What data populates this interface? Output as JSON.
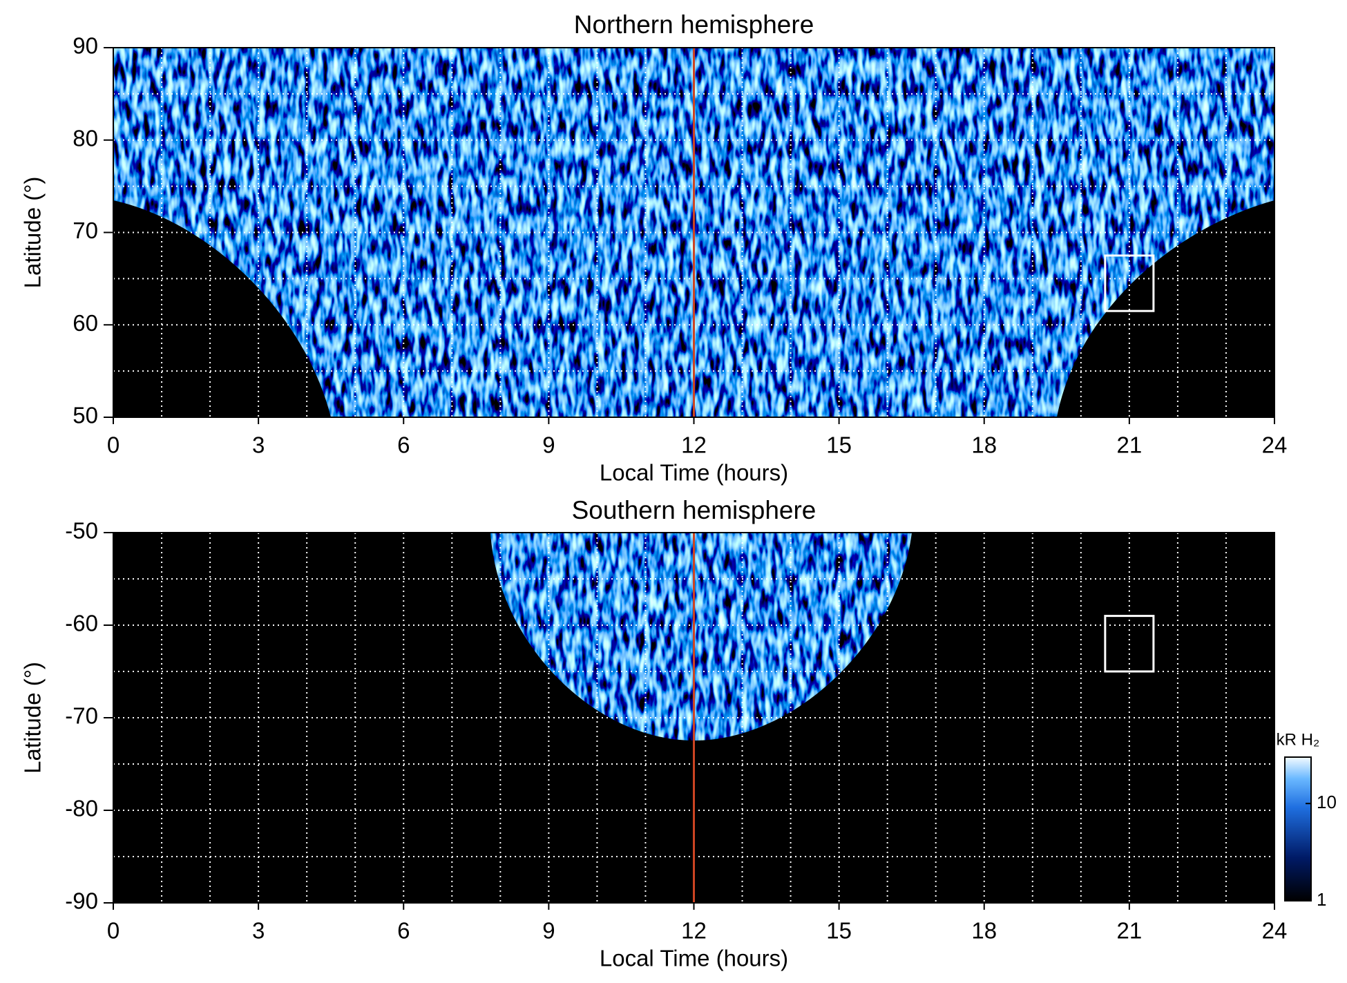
{
  "chart_data": [
    {
      "type": "heatmap",
      "title": "Northern hemisphere",
      "xlabel": "Local Time (hours)",
      "ylabel": "Latitude (°)",
      "xlim": [
        0,
        24
      ],
      "xticks": [
        0,
        3,
        6,
        9,
        12,
        15,
        18,
        21,
        24
      ],
      "ylim": [
        50,
        90
      ],
      "yticks": [
        50,
        60,
        70,
        80,
        90
      ],
      "xgrid_step": 1,
      "ygrid_step": 5,
      "vline": {
        "x": 12,
        "color": "#cc4422"
      },
      "boxes": [
        {
          "x": [
            20.5,
            21.5
          ],
          "y": [
            61.5,
            67.5
          ]
        }
      ]
    },
    {
      "type": "heatmap",
      "title": "Southern hemisphere",
      "xlabel": "Local Time (hours)",
      "ylabel": "Latitude (°)",
      "xlim": [
        0,
        24
      ],
      "xticks": [
        0,
        3,
        6,
        9,
        12,
        15,
        18,
        21,
        24
      ],
      "ylim": [
        -90,
        -50
      ],
      "yticks": [
        -90,
        -80,
        -70,
        -60,
        -50
      ],
      "xgrid_step": 1,
      "ygrid_step": 5,
      "vline": {
        "x": 12,
        "color": "#cc4422"
      },
      "boxes": [
        {
          "x": [
            20.5,
            21.5
          ],
          "y": [
            -65,
            -59
          ]
        }
      ],
      "colorbar": {
        "label": "kR H₂",
        "lim": [
          1,
          30
        ],
        "ticks": [
          1,
          10
        ],
        "log": true
      }
    }
  ]
}
